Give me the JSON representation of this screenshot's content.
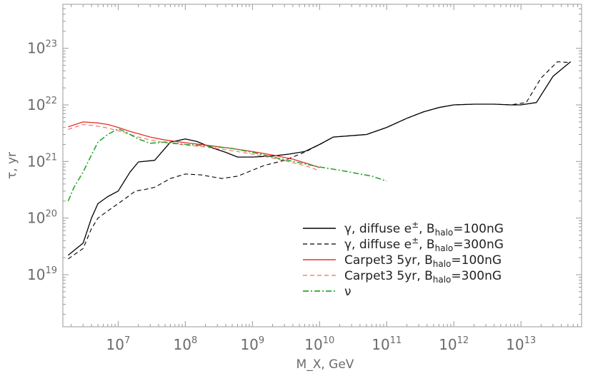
{
  "chart_data": {
    "type": "line",
    "title": "",
    "xlabel": "M_X, GeV",
    "ylabel": "τ, yr",
    "x_scale": "log",
    "y_scale": "log",
    "xlim": [
      1500000.0,
      80000000000000.0
    ],
    "ylim": [
      1.2e+18,
      6e+23
    ],
    "grid": false,
    "legend_position": "lower-right",
    "x_ticks": [
      {
        "value": 10000000.0,
        "base": "10",
        "exp": "7"
      },
      {
        "value": 100000000.0,
        "base": "10",
        "exp": "8"
      },
      {
        "value": 1000000000.0,
        "base": "10",
        "exp": "9"
      },
      {
        "value": 10000000000.0,
        "base": "10",
        "exp": "10"
      },
      {
        "value": 100000000000.0,
        "base": "10",
        "exp": "11"
      },
      {
        "value": 1000000000000.0,
        "base": "10",
        "exp": "12"
      },
      {
        "value": 10000000000000.0,
        "base": "10",
        "exp": "13"
      }
    ],
    "y_ticks": [
      {
        "value": 1e+19,
        "base": "10",
        "exp": "19"
      },
      {
        "value": 1e+20,
        "base": "10",
        "exp": "20"
      },
      {
        "value": 1e+21,
        "base": "10",
        "exp": "21"
      },
      {
        "value": 1e+22,
        "base": "10",
        "exp": "22"
      },
      {
        "value": 1e+23,
        "base": "10",
        "exp": "23"
      }
    ],
    "series": [
      {
        "name": "γ, diffuse e±, Bhalo=100nG",
        "legend": {
          "pre": "γ, diffuse e",
          "sup": "±",
          "mid": ", B",
          "sub": "halo",
          "post": "=100nG"
        },
        "color": "#000000",
        "dash": "",
        "stroke_width": 1.3,
        "points": [
          [
            1800000.0,
            2.2e+19
          ],
          [
            3000000.0,
            3.6e+19
          ],
          [
            4000000.0,
            1e+20
          ],
          [
            5000000.0,
            1.8e+20
          ],
          [
            7000000.0,
            2.4e+20
          ],
          [
            10000000.0,
            3e+20
          ],
          [
            15000000.0,
            6.5e+20
          ],
          [
            20000000.0,
            9.8e+20
          ],
          [
            35000000.0,
            1.05e+21
          ],
          [
            60000000.0,
            2.2e+21
          ],
          [
            100000000.0,
            2.5e+21
          ],
          [
            150000000.0,
            2.25e+21
          ],
          [
            250000000.0,
            1.75e+21
          ],
          [
            400000000.0,
            1.45e+21
          ],
          [
            600000000.0,
            1.2e+21
          ],
          [
            1000000000.0,
            1.2e+21
          ],
          [
            2000000000.0,
            1.25e+21
          ],
          [
            3500000000.0,
            1.35e+21
          ],
          [
            6000000000.0,
            1.5e+21
          ],
          [
            10000000000.0,
            2e+21
          ],
          [
            16000000000.0,
            2.7e+21
          ],
          [
            50000000000.0,
            3e+21
          ],
          [
            100000000000.0,
            4e+21
          ],
          [
            200000000000.0,
            5.8e+21
          ],
          [
            350000000000.0,
            7.5e+21
          ],
          [
            600000000000.0,
            9e+21
          ],
          [
            1000000000000.0,
            1e+22
          ],
          [
            2000000000000.0,
            1.03e+22
          ],
          [
            4000000000000.0,
            1.03e+22
          ],
          [
            7000000000000.0,
            1e+22
          ],
          [
            10000000000000.0,
            1e+22
          ],
          [
            17000000000000.0,
            1.1e+22
          ],
          [
            30000000000000.0,
            3.2e+22
          ],
          [
            55000000000000.0,
            5.8e+22
          ]
        ]
      },
      {
        "name": "γ, diffuse e±, Bhalo=300nG",
        "legend": {
          "pre": "γ, diffuse e",
          "sup": "±",
          "mid": ", B",
          "sub": "halo",
          "post": "=300nG"
        },
        "color": "#000000",
        "dash": "6,4",
        "stroke_width": 1.1,
        "points": [
          [
            1800000.0,
            1.9e+19
          ],
          [
            3000000.0,
            2.9e+19
          ],
          [
            4000000.0,
            6.5e+19
          ],
          [
            5000000.0,
            1e+20
          ],
          [
            8000000.0,
            1.5e+20
          ],
          [
            12000000.0,
            2.1e+20
          ],
          [
            18000000.0,
            3e+20
          ],
          [
            25000000.0,
            3.2e+20
          ],
          [
            35000000.0,
            3.5e+20
          ],
          [
            60000000.0,
            5e+20
          ],
          [
            100000000.0,
            6e+20
          ],
          [
            170000000.0,
            5.8e+20
          ],
          [
            350000000.0,
            5e+20
          ],
          [
            600000000.0,
            5.5e+20
          ],
          [
            1000000000.0,
            7e+20
          ],
          [
            1500000000.0,
            8.5e+20
          ],
          [
            3000000000.0,
            1.05e+21
          ],
          [
            5500000000.0,
            1.4e+21
          ],
          [
            7000000000.0,
            1.6e+21
          ],
          [
            10000000000.0,
            2e+21
          ],
          [
            16000000000.0,
            2.7e+21
          ],
          [
            50000000000.0,
            3e+21
          ],
          [
            100000000000.0,
            4e+21
          ],
          [
            200000000000.0,
            5.8e+21
          ],
          [
            350000000000.0,
            7.5e+21
          ],
          [
            600000000000.0,
            9e+21
          ],
          [
            1000000000000.0,
            1e+22
          ],
          [
            2000000000000.0,
            1.03e+22
          ],
          [
            4000000000000.0,
            1.03e+22
          ],
          [
            7000000000000.0,
            1e+22
          ],
          [
            12000000000000.0,
            1.1e+22
          ],
          [
            20000000000000.0,
            3e+22
          ],
          [
            35000000000000.0,
            5.8e+22
          ],
          [
            55000000000000.0,
            5.6e+22
          ]
        ]
      },
      {
        "name": "Carpet3 5yr, Bhalo=100nG",
        "legend": {
          "pre": "Carpet3 5yr,  B",
          "sup": "",
          "mid": "",
          "sub": "halo",
          "post": "=100nG"
        },
        "color": "#e8302a",
        "dash": "",
        "stroke_width": 1.3,
        "points": [
          [
            1800000.0,
            4.1e+21
          ],
          [
            3000000.0,
            5e+21
          ],
          [
            5000000.0,
            4.8e+21
          ],
          [
            7000000.0,
            4.5e+21
          ],
          [
            10000000.0,
            4e+21
          ],
          [
            15000000.0,
            3.4e+21
          ],
          [
            20000000.0,
            3.1e+21
          ],
          [
            30000000.0,
            2.7e+21
          ],
          [
            50000000.0,
            2.4e+21
          ],
          [
            100000000.0,
            2.15e+21
          ],
          [
            200000000.0,
            1.95e+21
          ],
          [
            500000000.0,
            1.7e+21
          ],
          [
            1000000000.0,
            1.5e+21
          ],
          [
            2000000000.0,
            1.3e+21
          ],
          [
            4000000000.0,
            1.1e+21
          ],
          [
            7000000000.0,
            9e+20
          ],
          [
            10000000000.0,
            7.8e+20
          ]
        ]
      },
      {
        "name": "Carpet3 5yr, Bhalo=300nG",
        "legend": {
          "pre": "Carpet3 5yr,  B",
          "sup": "",
          "mid": "",
          "sub": "halo",
          "post": "=300nG"
        },
        "color": "#f06a64",
        "dash": "6,4",
        "stroke_width": 1.1,
        "points": [
          [
            1800000.0,
            3.7e+21
          ],
          [
            3000000.0,
            4.5e+21
          ],
          [
            5000000.0,
            4.2e+21
          ],
          [
            7000000.0,
            3.9e+21
          ],
          [
            10000000.0,
            3.5e+21
          ],
          [
            15000000.0,
            3e+21
          ],
          [
            20000000.0,
            2.7e+21
          ],
          [
            30000000.0,
            2.4e+21
          ],
          [
            50000000.0,
            2.15e+21
          ],
          [
            100000000.0,
            1.95e+21
          ],
          [
            200000000.0,
            1.8e+21
          ],
          [
            500000000.0,
            1.55e+21
          ],
          [
            1000000000.0,
            1.35e+21
          ],
          [
            2000000000.0,
            1.15e+21
          ],
          [
            4000000000.0,
            9.5e+20
          ],
          [
            7000000000.0,
            8e+20
          ],
          [
            10000000000.0,
            6.8e+20
          ]
        ]
      },
      {
        "name": "ν",
        "legend": {
          "pre": "ν",
          "sup": "",
          "mid": "",
          "sub": "",
          "post": ""
        },
        "color": "#2aa62a",
        "dash": "8,3,2,3",
        "stroke_width": 1.6,
        "points": [
          [
            1800000.0,
            2e+20
          ],
          [
            2200000.0,
            3.5e+20
          ],
          [
            3000000.0,
            6.5e+20
          ],
          [
            4000000.0,
            1.3e+21
          ],
          [
            5000000.0,
            2.2e+21
          ],
          [
            7000000.0,
            3e+21
          ],
          [
            10000000.0,
            3.8e+21
          ],
          [
            13000000.0,
            3.3e+21
          ],
          [
            20000000.0,
            2.5e+21
          ],
          [
            30000000.0,
            2.1e+21
          ],
          [
            50000000.0,
            2.2e+21
          ],
          [
            100000000.0,
            2e+21
          ],
          [
            200000000.0,
            1.9e+21
          ],
          [
            500000000.0,
            1.7e+21
          ],
          [
            1000000000.0,
            1.45e+21
          ],
          [
            2000000000.0,
            1.2e+21
          ],
          [
            5000000000.0,
            9.5e+20
          ],
          [
            10000000000.0,
            8e+20
          ],
          [
            20000000000.0,
            7e+20
          ],
          [
            60000000000.0,
            5.5e+20
          ],
          [
            100000000000.0,
            4.5e+20
          ]
        ]
      }
    ]
  }
}
